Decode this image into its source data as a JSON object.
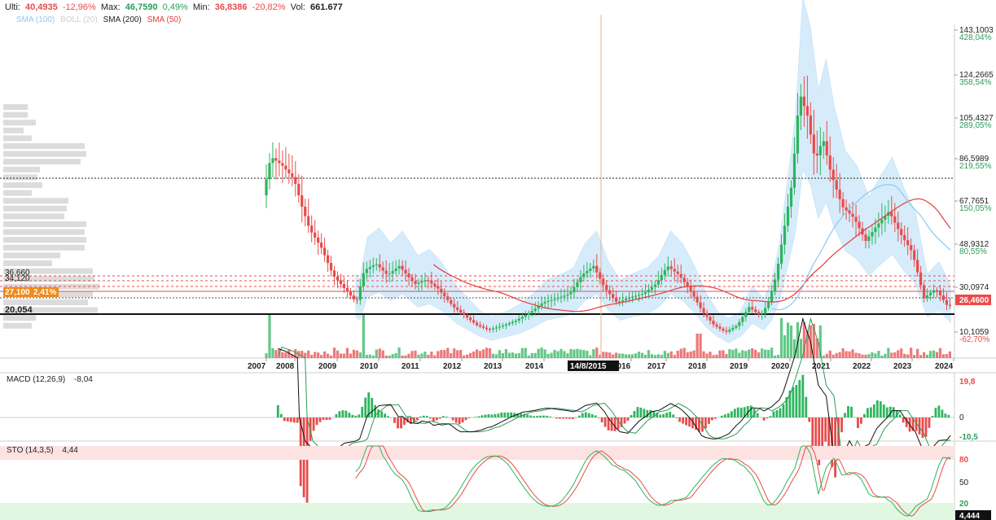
{
  "header": {
    "last_label": "Ulti:",
    "last_value": "40,4935",
    "last_change": "-12,96%",
    "max_label": "Max:",
    "max_value": "46,7590",
    "max_change": "0,49%",
    "min_label": "Min:",
    "min_value": "36,8386",
    "min_change": "-20,82%",
    "vol_label": "Vol:",
    "vol_value": "661.677"
  },
  "indicators": {
    "sma100": "SMA (100)",
    "boll": "BOLL (20)",
    "sma200": "SMA (200)",
    "sma50": "SMA (50)"
  },
  "colors": {
    "up": "#2db55d",
    "down": "#e84b4b",
    "boll_fill": "#d6ecfb",
    "sma50": "#e63b3b",
    "sma100": "#8cc8ef",
    "sma200": "#c8c8c8",
    "current_price": "#e84b4b",
    "level_badge": "#f08a1c"
  },
  "price_axis": {
    "ticks": [
      {
        "price": "143,1003",
        "pct": "428,04%"
      },
      {
        "price": "124,2665",
        "pct": "358,54%"
      },
      {
        "price": "105,4327",
        "pct": "289,05%"
      },
      {
        "price": "86,5989",
        "pct": "219,55%"
      },
      {
        "price": "67,7651",
        "pct": "150,05%"
      },
      {
        "price": "48,9312",
        "pct": "80,55%"
      },
      {
        "price": "30,0974",
        "pct": ""
      },
      {
        "price": "10,1059",
        "pct": "-62,70%"
      }
    ],
    "current_price": "26,4600"
  },
  "left_levels": {
    "l1": "36,660",
    "l2": "34,120",
    "l3": "27,100",
    "l3_pct": "2,41%",
    "l4": "20,054"
  },
  "time_axis": {
    "labels": [
      "2007",
      "2008",
      "2009",
      "2010",
      "2011",
      "2012",
      "2013",
      "2014",
      "2016",
      "2017",
      "2018",
      "2019",
      "2020",
      "2021",
      "2022",
      "2023",
      "2024"
    ],
    "crosshair_date": "14/8/2015"
  },
  "macd": {
    "title": "MACD (12,26,9)",
    "value": "-8,04",
    "axis_top": "19,8",
    "axis_zero": "0",
    "axis_bottom": "-10,5"
  },
  "sto": {
    "title": "STO (14,3,5)",
    "value": "4,44",
    "axis": [
      "80",
      "50",
      "20"
    ],
    "current": "4,444"
  },
  "chart_data": {
    "type": "candlestick",
    "x": [
      "2007",
      "2008",
      "2009",
      "2010",
      "2011",
      "2012",
      "2013",
      "2014",
      "2015",
      "2016",
      "2017",
      "2018",
      "2019",
      "2020",
      "2021",
      "2022",
      "2023",
      "2024"
    ],
    "close_approx": [
      80,
      60,
      35,
      40,
      35,
      22,
      20,
      25,
      38,
      28,
      33,
      30,
      22,
      30,
      110,
      68,
      55,
      26.46
    ],
    "ylim": [
      5,
      150
    ],
    "series": [
      {
        "name": "SMA (50)",
        "approx": [
          null,
          null,
          50,
          38,
          30,
          28,
          27,
          28,
          30,
          32,
          34,
          32,
          28,
          30,
          50,
          60,
          63,
          62
        ]
      },
      {
        "name": "SMA (100)",
        "approx": [
          null,
          null,
          null,
          40,
          36,
          32,
          30,
          30,
          31,
          33,
          34,
          33,
          30,
          30,
          38,
          45,
          50,
          45
        ]
      }
    ],
    "horizontal_levels": [
      36.66,
      34.12,
      27.1,
      20.054,
      86.6
    ],
    "log_scale": false,
    "grid": false
  }
}
